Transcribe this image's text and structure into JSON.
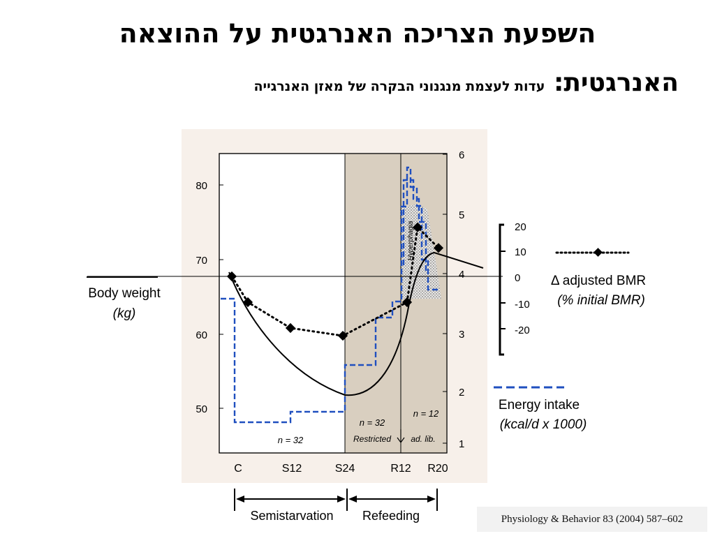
{
  "page": {
    "title_line1": "השפעת הצריכה האנרגטית על ההוצאה",
    "title_line2_main": "האנרגטית:",
    "title_line2_sub": "עדות לעצמת מנגנוני הבקרה של מאזן האנרגייה",
    "citation": "Physiology & Behavior 83 (2004) 587–602"
  },
  "chart_data": {
    "type": "line",
    "x_categories": [
      "C",
      "S12",
      "S24",
      "R12",
      "R20"
    ],
    "phases": [
      {
        "label": "Semistarvation",
        "from": "C",
        "to": "S24"
      },
      {
        "label": "Refeeding",
        "from": "S24",
        "to": "R20"
      }
    ],
    "axes": {
      "left": {
        "label_line1": "Body weight",
        "label_line2": "(kg)",
        "ticks": [
          50,
          60,
          70,
          80
        ]
      },
      "right": {
        "ticks": [
          1,
          2,
          3,
          4,
          5,
          6
        ]
      },
      "bmr": {
        "label_line1": "Δ adjusted BMR",
        "label_line2": "(% initial BMR)",
        "ticks": [
          "20",
          "10",
          "0",
          "-10",
          "-20"
        ]
      }
    },
    "series": [
      {
        "name": "Body weight (kg)",
        "style": "solid",
        "color": "#000000"
      },
      {
        "name": "Δ adjusted BMR (% initial BMR)",
        "style": "dotted-diamond",
        "color": "#000000",
        "points": [
          {
            "x": "C",
            "y": 0
          },
          {
            "x": "C+",
            "y": -10
          },
          {
            "x": "S12",
            "y": -20
          },
          {
            "x": "S24",
            "y": -23
          },
          {
            "x": "R12",
            "y": -10
          },
          {
            "x": "R16",
            "y": 19
          },
          {
            "x": "R20",
            "y": 11
          }
        ]
      },
      {
        "name": "Energy intake (kcal/d x 1000)",
        "style": "dashed",
        "color": "#1f4fbf",
        "label_line1": "Energy intake",
        "label_line2": "(kcal/d x 1000)"
      }
    ],
    "annotations": {
      "n_semi": "n = 32",
      "n_restricted": "n = 32",
      "n_adlib": "n = 12",
      "restricted": "Restricted",
      "adlib": "ad. lib.",
      "hyperphagia": "Hyperphagia"
    },
    "colors": {
      "panel_bg": "#f7f0ea",
      "refeed_shade": "#d9cfc0",
      "plot_bg": "#ffffff",
      "intake": "#1f4fbf"
    }
  }
}
